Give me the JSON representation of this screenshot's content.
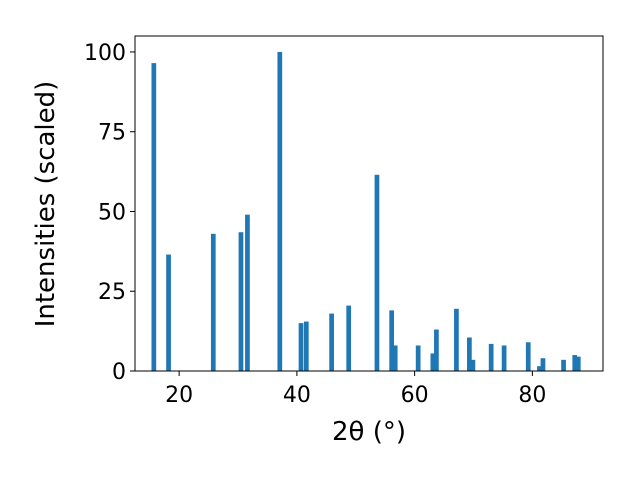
{
  "chart_data": {
    "type": "bar",
    "title": "",
    "xlabel": "2θ (°)",
    "ylabel": "Intensities (scaled)",
    "xlim": [
      12.5,
      92
    ],
    "ylim": [
      0,
      105
    ],
    "xticks": [
      20,
      40,
      60,
      80
    ],
    "yticks": [
      0,
      25,
      50,
      75,
      100
    ],
    "bar_width": 0.8,
    "grid": false,
    "legend": "none",
    "colors": {
      "bar": "#1f77b4"
    },
    "series": [
      {
        "values": [
          {
            "x": 15.7,
            "y": 96.5
          },
          {
            "x": 18.2,
            "y": 36.5
          },
          {
            "x": 25.8,
            "y": 43.0
          },
          {
            "x": 30.5,
            "y": 43.5
          },
          {
            "x": 31.6,
            "y": 49.0
          },
          {
            "x": 37.1,
            "y": 100.0
          },
          {
            "x": 40.7,
            "y": 15.0
          },
          {
            "x": 41.6,
            "y": 15.5
          },
          {
            "x": 45.9,
            "y": 18.0
          },
          {
            "x": 48.8,
            "y": 20.5
          },
          {
            "x": 53.6,
            "y": 61.5
          },
          {
            "x": 56.1,
            "y": 19.0
          },
          {
            "x": 56.7,
            "y": 8.0
          },
          {
            "x": 60.6,
            "y": 8.0
          },
          {
            "x": 63.1,
            "y": 5.5
          },
          {
            "x": 63.7,
            "y": 13.0
          },
          {
            "x": 67.1,
            "y": 19.5
          },
          {
            "x": 69.3,
            "y": 10.5
          },
          {
            "x": 69.9,
            "y": 3.5
          },
          {
            "x": 73.0,
            "y": 8.5
          },
          {
            "x": 75.2,
            "y": 8.0
          },
          {
            "x": 79.3,
            "y": 9.0
          },
          {
            "x": 81.2,
            "y": 1.5
          },
          {
            "x": 81.8,
            "y": 4.0
          },
          {
            "x": 85.3,
            "y": 3.5
          },
          {
            "x": 87.2,
            "y": 5.0
          },
          {
            "x": 87.8,
            "y": 4.5
          }
        ]
      }
    ]
  }
}
